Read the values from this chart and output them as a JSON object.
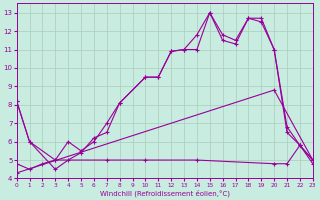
{
  "xlabel": "Windchill (Refroidissement éolien,°C)",
  "background_color": "#c8ece0",
  "grid_color": "#aaccbb",
  "line_color": "#990099",
  "xlim": [
    0,
    23
  ],
  "ylim": [
    4,
    13.5
  ],
  "yticks": [
    4,
    5,
    6,
    7,
    8,
    9,
    10,
    11,
    12,
    13
  ],
  "xticks": [
    0,
    1,
    2,
    3,
    4,
    5,
    6,
    7,
    8,
    9,
    10,
    11,
    12,
    13,
    14,
    15,
    16,
    17,
    18,
    19,
    20,
    21,
    22,
    23
  ],
  "line1_x": [
    0,
    1,
    3,
    4,
    5,
    6,
    7,
    8,
    10,
    11,
    12,
    13,
    14,
    15,
    16,
    17,
    18,
    19,
    20,
    21,
    22,
    23
  ],
  "line1_y": [
    8.2,
    6.0,
    5.0,
    6.0,
    5.5,
    6.0,
    7.0,
    8.1,
    9.5,
    9.5,
    10.9,
    11.0,
    11.8,
    13.0,
    11.8,
    11.5,
    12.7,
    12.7,
    11.0,
    6.8,
    5.8,
    5.0
  ],
  "line2_x": [
    0,
    1,
    3,
    4,
    5,
    6,
    7,
    8,
    10,
    11,
    12,
    13,
    14,
    15,
    16,
    17,
    18,
    19,
    20,
    21,
    22,
    23
  ],
  "line2_y": [
    8.2,
    6.0,
    4.5,
    5.0,
    5.4,
    6.2,
    6.5,
    8.1,
    9.5,
    9.5,
    10.9,
    11.0,
    11.0,
    13.0,
    11.5,
    11.3,
    12.7,
    12.5,
    11.0,
    6.5,
    5.8,
    5.0
  ],
  "line3_x": [
    0,
    20,
    23
  ],
  "line3_y": [
    4.3,
    8.8,
    5.0
  ],
  "line4_x": [
    0,
    1,
    2,
    3,
    7,
    10,
    14,
    20,
    21,
    22,
    23
  ],
  "line4_y": [
    4.8,
    4.5,
    4.8,
    5.0,
    5.0,
    5.0,
    5.0,
    4.8,
    4.8,
    5.8,
    4.8
  ]
}
